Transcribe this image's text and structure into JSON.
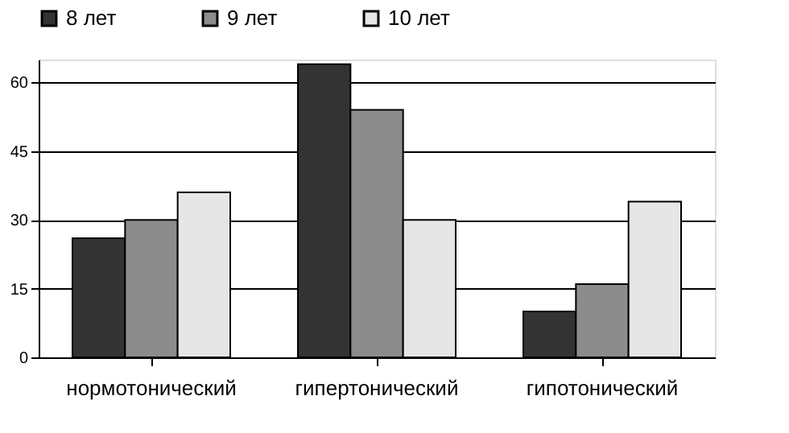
{
  "chart_data": {
    "type": "bar",
    "categories": [
      "нормотонический",
      "гипертонический",
      "гипотонический"
    ],
    "series": [
      {
        "name": "8 лет",
        "color": "#333333",
        "values": [
          26,
          64,
          10
        ]
      },
      {
        "name": "9 лет",
        "color": "#8c8c8c",
        "values": [
          30,
          54,
          16
        ]
      },
      {
        "name": "10 лет",
        "color": "#e6e6e6",
        "values": [
          36,
          30,
          34
        ]
      }
    ],
    "ylim": [
      0,
      65
    ],
    "yticks": [
      0,
      15,
      30,
      45,
      60
    ],
    "grid": "y",
    "legend": "top"
  }
}
